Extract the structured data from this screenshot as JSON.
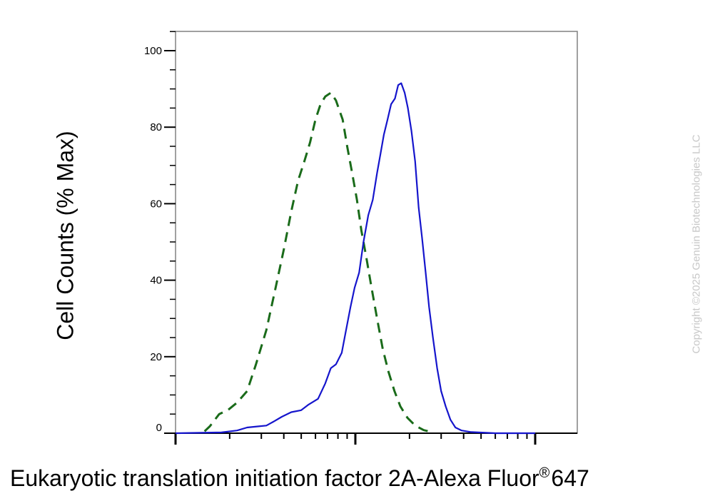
{
  "chart_data": {
    "type": "line",
    "title": "",
    "ylabel": "Cell Counts (% Max)",
    "xlabel": "Eukaryotic translation initiation factor 2A-Alexa Fluor",
    "xlabel_superscript": "®",
    "xlabel_suffix": "647",
    "x_scale": "log",
    "x_ticklabels": [],
    "ylim": [
      0,
      105
    ],
    "yticks": [
      0,
      20,
      40,
      60,
      80,
      100
    ],
    "ytick_labels": [
      "0",
      "20",
      "40",
      "60",
      "80",
      "100"
    ],
    "grid": false,
    "legend": null,
    "series": [
      {
        "color": "#1a6b1a",
        "style": "dashed",
        "points": [
          [
            1.45,
            0.5
          ],
          [
            1.55,
            1.8
          ],
          [
            1.75,
            5
          ],
          [
            1.95,
            6
          ],
          [
            2.2,
            8
          ],
          [
            2.5,
            11
          ],
          [
            2.8,
            18
          ],
          [
            3.2,
            27
          ],
          [
            3.6,
            38
          ],
          [
            4.0,
            48
          ],
          [
            4.4,
            58
          ],
          [
            4.8,
            66
          ],
          [
            5.2,
            71
          ],
          [
            5.6,
            76
          ],
          [
            6.0,
            82
          ],
          [
            6.4,
            86
          ],
          [
            6.8,
            88
          ],
          [
            7.3,
            89
          ],
          [
            7.8,
            87
          ],
          [
            8.5,
            82
          ],
          [
            9.0,
            75
          ],
          [
            9.6,
            68
          ],
          [
            10.2,
            61
          ],
          [
            10.8,
            53
          ],
          [
            11.5,
            46
          ],
          [
            12.3,
            38
          ],
          [
            13.2,
            30
          ],
          [
            14.2,
            22
          ],
          [
            15.3,
            16
          ],
          [
            16.5,
            11
          ],
          [
            17.8,
            7
          ],
          [
            19.5,
            4
          ],
          [
            21.5,
            2
          ],
          [
            24,
            0.8
          ],
          [
            27,
            0.2
          ]
        ]
      },
      {
        "color": "#1515cc",
        "style": "solid",
        "points": [
          [
            1.0,
            0
          ],
          [
            1.8,
            0.2
          ],
          [
            2.2,
            0.7
          ],
          [
            2.5,
            1.5
          ],
          [
            2.9,
            1.8
          ],
          [
            3.2,
            2
          ],
          [
            3.5,
            3
          ],
          [
            3.9,
            4.3
          ],
          [
            4.4,
            5.5
          ],
          [
            5.0,
            6
          ],
          [
            5.5,
            7.5
          ],
          [
            6.2,
            9
          ],
          [
            6.8,
            13
          ],
          [
            7.3,
            17
          ],
          [
            7.8,
            18
          ],
          [
            8.4,
            21
          ],
          [
            8.8,
            26
          ],
          [
            9.4,
            33
          ],
          [
            9.9,
            38
          ],
          [
            10.5,
            42
          ],
          [
            11.1,
            50
          ],
          [
            11.8,
            57
          ],
          [
            12.5,
            61
          ],
          [
            13.2,
            68
          ],
          [
            13.8,
            73
          ],
          [
            14.4,
            78
          ],
          [
            15.1,
            82
          ],
          [
            15.8,
            86
          ],
          [
            16.6,
            87.5
          ],
          [
            17.3,
            91
          ],
          [
            18.0,
            91.5
          ],
          [
            18.8,
            89
          ],
          [
            19.6,
            85
          ],
          [
            20.5,
            79
          ],
          [
            21.5,
            71
          ],
          [
            22.5,
            59
          ],
          [
            23.5,
            51
          ],
          [
            24.6,
            42
          ],
          [
            25.7,
            33
          ],
          [
            27,
            25
          ],
          [
            28.5,
            17
          ],
          [
            30,
            11
          ],
          [
            31.8,
            7
          ],
          [
            33.8,
            3.5
          ],
          [
            36,
            1.5
          ],
          [
            39,
            0.7
          ],
          [
            44,
            0.3
          ],
          [
            60,
            0
          ],
          [
            100,
            0
          ]
        ]
      }
    ]
  },
  "watermark": "Copyright ©2025 Genuin Biotechnologies LLC"
}
